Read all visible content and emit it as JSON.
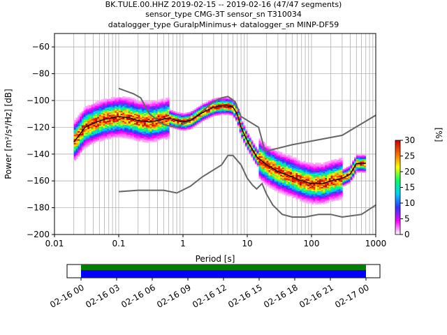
{
  "header": {
    "line1": "BK.TULE.00.HHZ   2019-02-15 -- 2019-02-16  (47/47 segments)",
    "line2": "sensor_type CMG-3T sensor_sn T310034",
    "line3": "datalogger_type GuralpMinimus+ datalogger_sn MINP-DF59"
  },
  "chart_data": {
    "type": "heatmap",
    "xlabel": "Period [s]",
    "ylabel": "Power [m²/s⁴/Hz] [dB]",
    "xscale": "log",
    "xlim": [
      0.01,
      1000
    ],
    "ylim": [
      -200,
      -50
    ],
    "xticks": [
      {
        "value": 0.01,
        "label": "0.01"
      },
      {
        "value": 0.1,
        "label": "0.1"
      },
      {
        "value": 1,
        "label": "1"
      },
      {
        "value": 10,
        "label": "10"
      },
      {
        "value": 100,
        "label": "100"
      },
      {
        "value": 1000,
        "label": "1000"
      }
    ],
    "yticks": [
      -60,
      -80,
      -100,
      -120,
      -140,
      -160,
      -180,
      -200
    ],
    "grid": true,
    "series": [
      {
        "name": "",
        "color": "#666666",
        "values": [
          [
            0.1,
            -91
          ],
          [
            0.17,
            -95
          ],
          [
            0.22,
            -98
          ],
          [
            0.3,
            -110
          ],
          [
            0.5,
            -118
          ],
          [
            0.8,
            -120
          ],
          [
            1.3,
            -115
          ],
          [
            2,
            -108
          ],
          [
            3,
            -101
          ],
          [
            4,
            -98
          ],
          [
            5,
            -97
          ],
          [
            6.5,
            -101
          ],
          [
            8,
            -112
          ],
          [
            15,
            -120
          ],
          [
            19,
            -138
          ],
          [
            50,
            -133
          ],
          [
            300,
            -126
          ],
          [
            1000,
            -111
          ]
        ]
      },
      {
        "name": "",
        "color": "#666666",
        "values": [
          [
            0.1,
            -168
          ],
          [
            0.2,
            -167
          ],
          [
            0.5,
            -167
          ],
          [
            0.8,
            -169
          ],
          [
            1.3,
            -164
          ],
          [
            2,
            -157
          ],
          [
            4,
            -148
          ],
          [
            5,
            -141
          ],
          [
            6,
            -141
          ],
          [
            8,
            -148
          ],
          [
            10,
            -158
          ],
          [
            12,
            -163
          ],
          [
            14,
            -166
          ],
          [
            17,
            -162
          ],
          [
            20,
            -170
          ],
          [
            25,
            -178
          ],
          [
            35,
            -185
          ],
          [
            50,
            -187
          ],
          [
            80,
            -187
          ],
          [
            100,
            -186
          ],
          [
            130,
            -185
          ],
          [
            200,
            -185
          ],
          [
            300,
            -187
          ],
          [
            600,
            -185
          ],
          [
            1000,
            -178
          ]
        ]
      },
      {
        "name": "",
        "color": "#000000",
        "values": [
          [
            0.02,
            -131
          ],
          [
            0.025,
            -125
          ],
          [
            0.03,
            -120
          ],
          [
            0.04,
            -117
          ],
          [
            0.06,
            -114
          ],
          [
            0.1,
            -112
          ],
          [
            0.15,
            -113
          ],
          [
            0.2,
            -115
          ],
          [
            0.3,
            -116
          ],
          [
            0.4,
            -115
          ],
          [
            0.6,
            -113
          ],
          [
            0.8,
            -115
          ],
          [
            1,
            -116
          ],
          [
            1.3,
            -115
          ],
          [
            2,
            -109
          ],
          [
            3,
            -105
          ],
          [
            4,
            -104
          ],
          [
            5,
            -104
          ],
          [
            6,
            -105
          ],
          [
            7,
            -110
          ],
          [
            8,
            -120
          ],
          [
            10,
            -130
          ],
          [
            14,
            -142
          ],
          [
            20,
            -148
          ],
          [
            30,
            -153
          ],
          [
            50,
            -157
          ],
          [
            70,
            -160
          ],
          [
            100,
            -162
          ],
          [
            150,
            -162
          ],
          [
            200,
            -160
          ],
          [
            300,
            -158
          ],
          [
            400,
            -155
          ],
          [
            500,
            -147
          ],
          [
            700,
            -147
          ]
        ]
      }
    ],
    "colorbar": {
      "label": "[%]",
      "range": [
        0,
        30
      ],
      "ticks": [
        0,
        5,
        10,
        15,
        20,
        25,
        30
      ],
      "colors": [
        "#ffffff",
        "#ff00ff",
        "#3333ff",
        "#00ccff",
        "#00ff66",
        "#ffff00",
        "#ff6600",
        "#cc0000"
      ]
    },
    "timeline": {
      "ticks": [
        "02-16 00",
        "02-16 03",
        "02-16 06",
        "02-16 09",
        "02-16 12",
        "02-16 15",
        "02-16 18",
        "02-16 21",
        "02-17 00"
      ],
      "coverage_color": "#0000ff",
      "gap_color": "#007f00"
    }
  }
}
